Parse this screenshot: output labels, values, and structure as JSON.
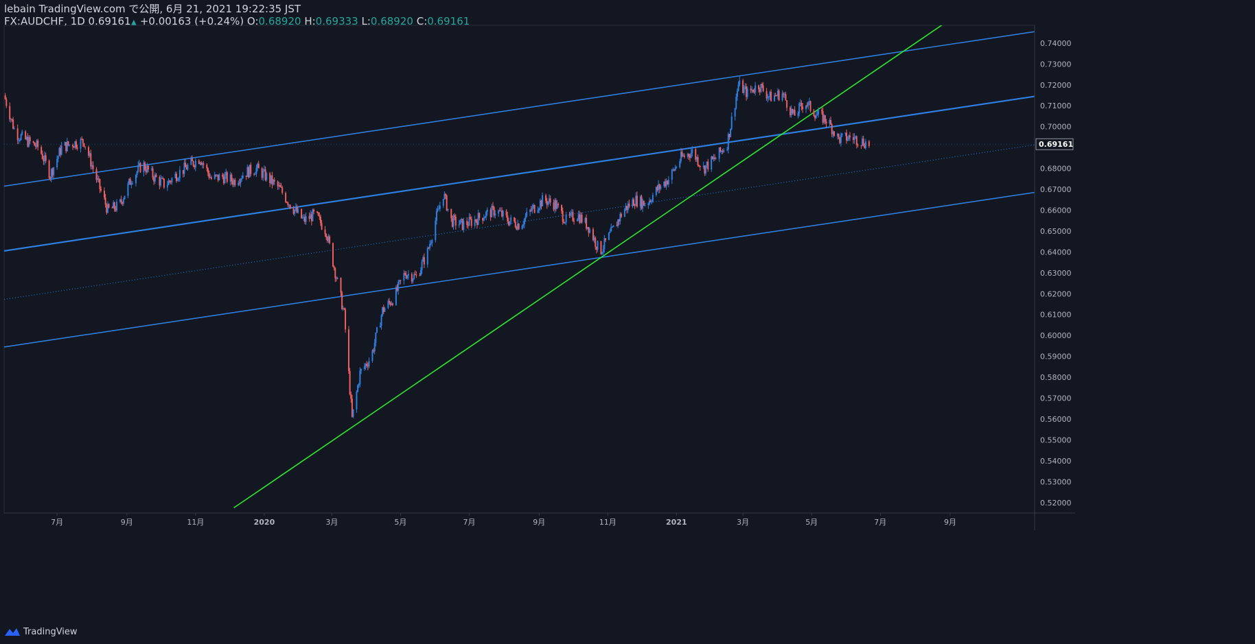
{
  "header": {
    "publish_line": "lebain TradingView.com で公開, 6月 21, 2021 19:22:35 JST",
    "symbol": "FX:AUDCHF, 1D",
    "last": "0.69161",
    "change": "+0.00163 (+0.24%)",
    "o_label": "O:",
    "o_value": "0.68920",
    "h_label": "H:",
    "h_value": "0.69333",
    "l_label": "L:",
    "l_value": "0.68920",
    "c_label": "C:",
    "c_value": "0.69161"
  },
  "footer": {
    "brand": "TradingView"
  },
  "colors": {
    "background": "#131722",
    "up": "#2f7fe0",
    "down": "#ef5f5f",
    "channel": "#2f7fe0",
    "trendline": "#2ee82e",
    "price_tag_bg": "#131722"
  },
  "chart_data": {
    "type": "candlestick",
    "symbol": "FX:AUDCHF",
    "interval": "1D",
    "ylim": [
      0.515,
      0.7485
    ],
    "y_ticks": [
      "0.74000",
      "0.73000",
      "0.72000",
      "0.71000",
      "0.70000",
      "0.68000",
      "0.67000",
      "0.66000",
      "0.65000",
      "0.64000",
      "0.63000",
      "0.62000",
      "0.61000",
      "0.60000",
      "0.59000",
      "0.58000",
      "0.57000",
      "0.56000",
      "0.55000",
      "0.54000",
      "0.53000",
      "0.52000"
    ],
    "y_tick_values": [
      0.74,
      0.73,
      0.72,
      0.71,
      0.7,
      0.68,
      0.67,
      0.66,
      0.65,
      0.64,
      0.63,
      0.62,
      0.61,
      0.6,
      0.59,
      0.58,
      0.57,
      0.56,
      0.55,
      0.54,
      0.53,
      0.52
    ],
    "x_labels": [
      {
        "date": "2019-07-01",
        "label": "7月"
      },
      {
        "date": "2019-09-01",
        "label": "9月"
      },
      {
        "date": "2019-11-01",
        "label": "11月"
      },
      {
        "date": "2020-01-01",
        "label": "2020"
      },
      {
        "date": "2020-03-01",
        "label": "3月"
      },
      {
        "date": "2020-05-01",
        "label": "5月"
      },
      {
        "date": "2020-07-01",
        "label": "7月"
      },
      {
        "date": "2020-09-01",
        "label": "9月"
      },
      {
        "date": "2020-11-01",
        "label": "11月"
      },
      {
        "date": "2021-01-01",
        "label": "2021"
      },
      {
        "date": "2021-03-01",
        "label": "3月"
      },
      {
        "date": "2021-05-01",
        "label": "5月"
      },
      {
        "date": "2021-07-01",
        "label": "7月"
      },
      {
        "date": "2021-09-01",
        "label": "9月"
      }
    ],
    "x_range": [
      "2019-05-15",
      "2021-11-15"
    ],
    "last_price": {
      "value": 0.69161,
      "label": "0.69161"
    },
    "price_path": [
      [
        "2019-05-15",
        0.715
      ],
      [
        "2019-05-25",
        0.697
      ],
      [
        "2019-06-05",
        0.693
      ],
      [
        "2019-06-15",
        0.69
      ],
      [
        "2019-06-25",
        0.677
      ],
      [
        "2019-07-05",
        0.69
      ],
      [
        "2019-07-15",
        0.692
      ],
      [
        "2019-07-25",
        0.693
      ],
      [
        "2019-08-05",
        0.675
      ],
      [
        "2019-08-15",
        0.66
      ],
      [
        "2019-08-25",
        0.662
      ],
      [
        "2019-09-05",
        0.675
      ],
      [
        "2019-09-15",
        0.682
      ],
      [
        "2019-09-25",
        0.676
      ],
      [
        "2019-10-05",
        0.672
      ],
      [
        "2019-10-15",
        0.677
      ],
      [
        "2019-10-25",
        0.681
      ],
      [
        "2019-11-05",
        0.685
      ],
      [
        "2019-11-15",
        0.675
      ],
      [
        "2019-11-25",
        0.676
      ],
      [
        "2019-12-05",
        0.674
      ],
      [
        "2019-12-15",
        0.678
      ],
      [
        "2019-12-25",
        0.68
      ],
      [
        "2020-01-05",
        0.675
      ],
      [
        "2020-01-15",
        0.67
      ],
      [
        "2020-01-25",
        0.662
      ],
      [
        "2020-02-05",
        0.655
      ],
      [
        "2020-02-15",
        0.658
      ],
      [
        "2020-02-25",
        0.65
      ],
      [
        "2020-03-05",
        0.628
      ],
      [
        "2020-03-12",
        0.61
      ],
      [
        "2020-03-19",
        0.56
      ],
      [
        "2020-03-26",
        0.582
      ],
      [
        "2020-04-05",
        0.59
      ],
      [
        "2020-04-15",
        0.612
      ],
      [
        "2020-04-25",
        0.618
      ],
      [
        "2020-05-05",
        0.63
      ],
      [
        "2020-05-15",
        0.628
      ],
      [
        "2020-05-25",
        0.64
      ],
      [
        "2020-06-01",
        0.655
      ],
      [
        "2020-06-08",
        0.668
      ],
      [
        "2020-06-15",
        0.655
      ],
      [
        "2020-06-25",
        0.653
      ],
      [
        "2020-07-05",
        0.655
      ],
      [
        "2020-07-15",
        0.658
      ],
      [
        "2020-07-25",
        0.66
      ],
      [
        "2020-08-05",
        0.655
      ],
      [
        "2020-08-15",
        0.653
      ],
      [
        "2020-08-25",
        0.66
      ],
      [
        "2020-09-05",
        0.665
      ],
      [
        "2020-09-15",
        0.663
      ],
      [
        "2020-09-25",
        0.655
      ],
      [
        "2020-10-05",
        0.658
      ],
      [
        "2020-10-15",
        0.652
      ],
      [
        "2020-10-25",
        0.64
      ],
      [
        "2020-11-05",
        0.65
      ],
      [
        "2020-11-15",
        0.66
      ],
      [
        "2020-11-25",
        0.665
      ],
      [
        "2020-12-05",
        0.663
      ],
      [
        "2020-12-15",
        0.67
      ],
      [
        "2020-12-25",
        0.675
      ],
      [
        "2021-01-05",
        0.685
      ],
      [
        "2021-01-15",
        0.688
      ],
      [
        "2021-01-25",
        0.68
      ],
      [
        "2021-02-05",
        0.685
      ],
      [
        "2021-02-15",
        0.692
      ],
      [
        "2021-02-25",
        0.72
      ],
      [
        "2021-03-05",
        0.716
      ],
      [
        "2021-03-15",
        0.72
      ],
      [
        "2021-03-25",
        0.714
      ],
      [
        "2021-04-05",
        0.716
      ],
      [
        "2021-04-15",
        0.705
      ],
      [
        "2021-04-25",
        0.712
      ],
      [
        "2021-05-05",
        0.706
      ],
      [
        "2021-05-15",
        0.703
      ],
      [
        "2021-05-25",
        0.694
      ],
      [
        "2021-06-05",
        0.695
      ],
      [
        "2021-06-15",
        0.693
      ],
      [
        "2021-06-21",
        0.6916
      ]
    ],
    "drawings": [
      {
        "kind": "channel-upper",
        "color": "#2f7fe0",
        "p1": [
          "2019-05-15",
          0.6715
        ],
        "p2": [
          "2021-11-15",
          0.7455
        ]
      },
      {
        "kind": "channel-middle",
        "color": "#2f7fe0",
        "p1": [
          "2019-05-15",
          0.6405
        ],
        "p2": [
          "2021-11-15",
          0.7145
        ]
      },
      {
        "kind": "channel-dotted",
        "color": "#2f7fe0",
        "p1": [
          "2019-05-15",
          0.6173
        ],
        "p2": [
          "2021-11-15",
          0.6913
        ]
      },
      {
        "kind": "channel-lower",
        "color": "#2f7fe0",
        "p1": [
          "2019-05-15",
          0.5945
        ],
        "p2": [
          "2021-11-15",
          0.6685
        ]
      },
      {
        "kind": "trendline",
        "color": "#2ee82e",
        "p1": [
          "2019-12-05",
          0.5175
        ],
        "p2": [
          "2021-08-27",
          0.7495
        ]
      }
    ]
  }
}
